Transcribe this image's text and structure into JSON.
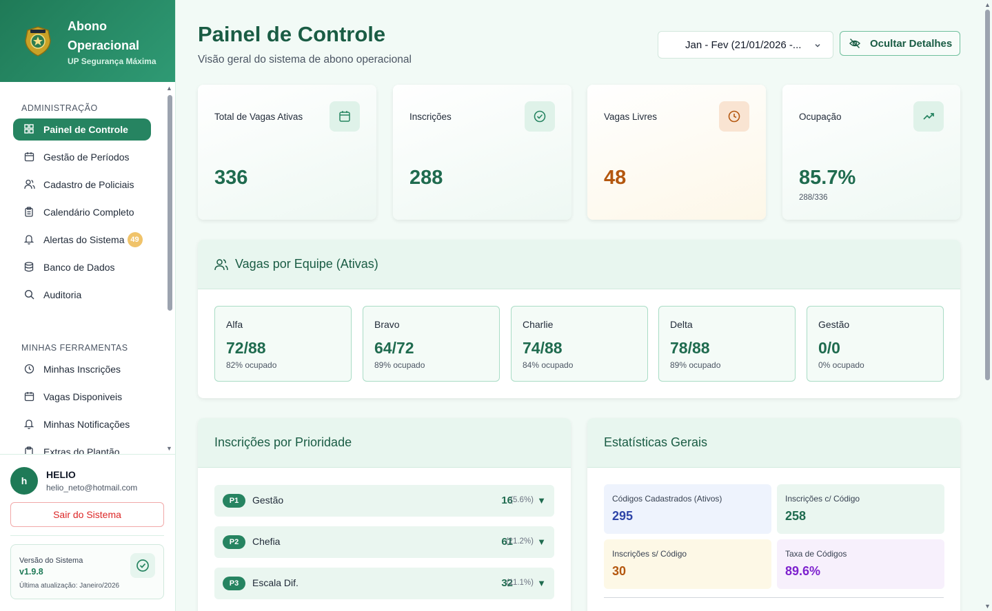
{
  "brand": {
    "title": "Abono Operacional",
    "subtitle": "UP Segurança Máxima"
  },
  "sidebar": {
    "section_admin": "ADMINISTRAÇÃO",
    "section_tools": "MINHAS FERRAMENTAS",
    "admin_items": [
      {
        "label": "Painel de Controle",
        "icon": "grid-icon",
        "active": true
      },
      {
        "label": "Gestão de Períodos",
        "icon": "calendar-icon"
      },
      {
        "label": "Cadastro de Policiais",
        "icon": "users-icon"
      },
      {
        "label": "Calendário Completo",
        "icon": "clipboard-icon"
      },
      {
        "label": "Alertas do Sistema",
        "icon": "bell-icon",
        "badge": "49"
      },
      {
        "label": "Banco de Dados",
        "icon": "database-icon"
      },
      {
        "label": "Auditoria",
        "icon": "search-icon"
      }
    ],
    "tool_items": [
      {
        "label": "Minhas Inscrições",
        "icon": "clock-icon"
      },
      {
        "label": "Vagas Disponiveis",
        "icon": "calendar-icon"
      },
      {
        "label": "Minhas Notificações",
        "icon": "bell-icon"
      },
      {
        "label": "Extras do Plantão",
        "icon": "clipboard-icon"
      }
    ]
  },
  "user": {
    "initial": "h",
    "name": "HELIO",
    "email": "helio_neto@hotmail.com",
    "logout_label": "Sair do Sistema"
  },
  "version": {
    "label": "Versão do Sistema",
    "number": "v1.9.8",
    "updated": "Última atualização: Janeiro/2026"
  },
  "header": {
    "title": "Painel de Controle",
    "subtitle": "Visão geral do sistema de abono operacional",
    "period_value": "Jan - Fev (21/01/2026 -...",
    "hide_button": "Ocultar Detalhes"
  },
  "stats": [
    {
      "label": "Total de Vagas Ativas",
      "value": "336",
      "icon": "calendar-icon"
    },
    {
      "label": "Inscrições",
      "value": "288",
      "icon": "check-circle-icon"
    },
    {
      "label": "Vagas Livres",
      "value": "48",
      "icon": "clock-icon"
    },
    {
      "label": "Ocupação",
      "value": "85.7%",
      "sub": "288/336",
      "icon": "trending-up-icon"
    }
  ],
  "teams": {
    "title": "Vagas por Equipe (Ativas)",
    "items": [
      {
        "name": "Alfa",
        "value": "72/88",
        "pct": "82% ocupado"
      },
      {
        "name": "Bravo",
        "value": "64/72",
        "pct": "89% ocupado"
      },
      {
        "name": "Charlie",
        "value": "74/88",
        "pct": "84% ocupado"
      },
      {
        "name": "Delta",
        "value": "78/88",
        "pct": "89% ocupado"
      },
      {
        "name": "Gestão",
        "value": "0/0",
        "pct": "0% ocupado"
      }
    ]
  },
  "priority": {
    "title": "Inscrições por Prioridade",
    "items": [
      {
        "code": "P1",
        "label": "Gestão",
        "count": "16",
        "pct": "(5.6%)"
      },
      {
        "code": "P2",
        "label": "Chefia",
        "count": "61",
        "pct": "(21.2%)"
      },
      {
        "code": "P3",
        "label": "Escala Dif.",
        "count": "32",
        "pct": "(11.1%)"
      }
    ]
  },
  "general": {
    "title": "Estatísticas Gerais",
    "items": [
      {
        "label": "Códigos Cadastrados (Ativos)",
        "value": "295",
        "color": "#2f45a8",
        "bg": "#eef3fd"
      },
      {
        "label": "Inscrições c/ Código",
        "value": "258",
        "color": "#1f6b4f",
        "bg": "#eaf6f0"
      },
      {
        "label": "Inscrições s/ Código",
        "value": "30",
        "color": "#b4570f",
        "bg": "#fdf8e6"
      },
      {
        "label": "Taxa de Códigos",
        "value": "89.6%",
        "color": "#7e22ce",
        "bg": "#f7f0fc"
      }
    ]
  }
}
